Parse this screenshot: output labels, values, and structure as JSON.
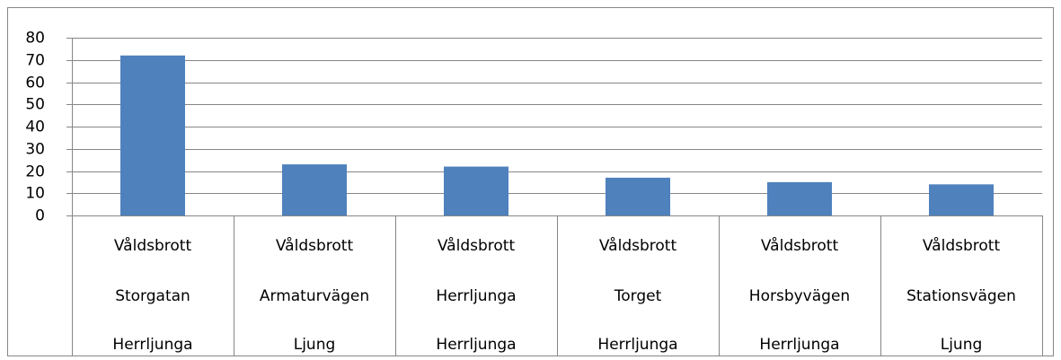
{
  "chart_data": {
    "type": "bar",
    "categories": [
      [
        "Våldsbrott",
        "Storgatan",
        "Herrljunga"
      ],
      [
        "Våldsbrott",
        "Armaturvägen",
        "Ljung"
      ],
      [
        "Våldsbrott",
        "Herrljunga",
        "Herrljunga"
      ],
      [
        "Våldsbrott",
        "Torget",
        "Herrljunga"
      ],
      [
        "Våldsbrott",
        "Horsbyvägen",
        "Herrljunga"
      ],
      [
        "Våldsbrott",
        "Stationsvägen",
        "Ljung"
      ]
    ],
    "values": [
      72,
      23,
      22,
      17,
      15,
      14
    ],
    "color": "#4f81bd",
    "ylim": [
      0,
      80
    ],
    "yticks": [
      0,
      10,
      20,
      30,
      40,
      50,
      60,
      70,
      80
    ],
    "grid": true
  }
}
